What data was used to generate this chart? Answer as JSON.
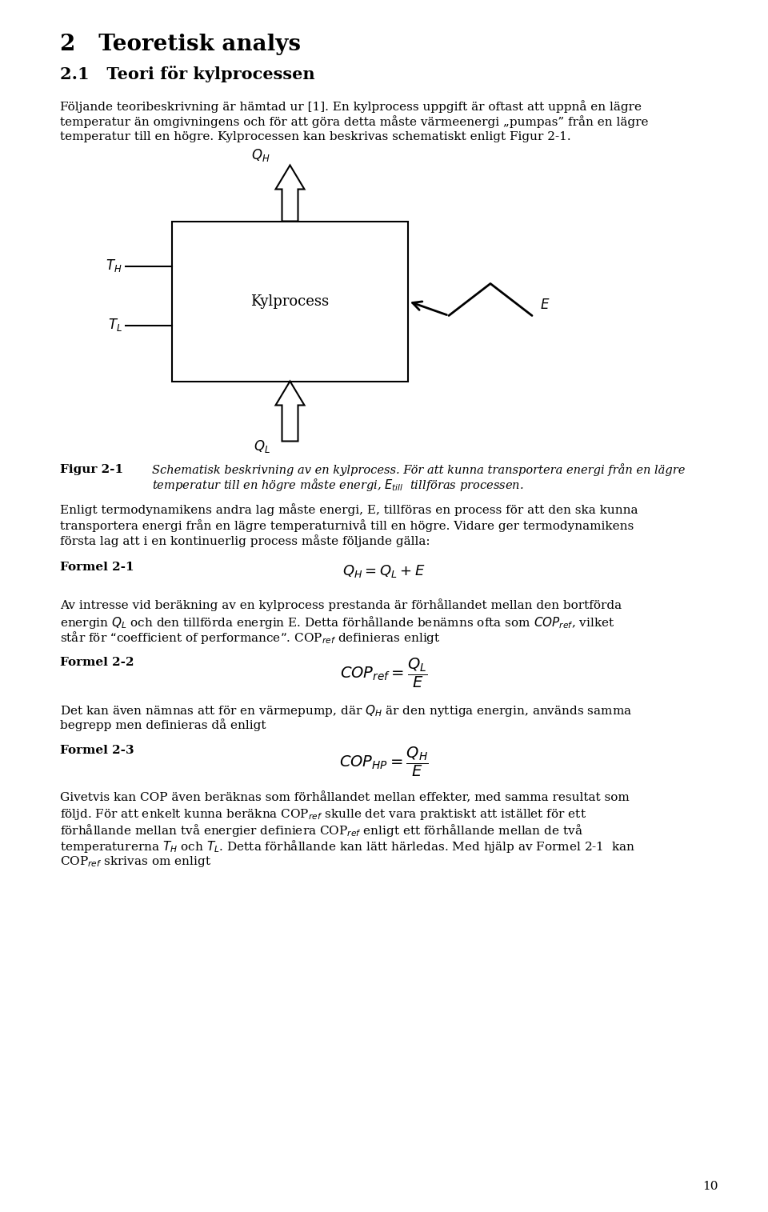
{
  "page_number": "10",
  "bg_color": "#ffffff",
  "text_color": "#000000",
  "heading1": "2   Teoretisk analys",
  "heading2": "2.1   Teori för kylprocessen",
  "para1_line1": "Följande teoribeskrivning är hämtad ur [1]. En kylprocess uppgift är oftast att uppnå en lägre",
  "para1_line2": "temperatur än omgivningens och för att göra detta måste värmeenergi „pumpas” från en lägre",
  "para1_line3": "temperatur till en högre. Kylprocessen kan beskrivas schematiskt enligt Figur 2-1.",
  "box_label": "Kylprocess",
  "th_label": "$T_H$",
  "tl_label": "$T_L$",
  "qh_label": "$Q_H$",
  "ql_label": "$Q_L$",
  "e_label": "$E$",
  "figur_bold": "Figur 2-1",
  "figur_caption_line1": "Schematisk beskrivning av en kylprocess. För att kunna transportera energi från en lägre",
  "figur_caption_line2": "temperatur till en högre måste energi, $E_{till}$  tillföras processen.",
  "para2_line1": "Enligt termodynamikens andra lag måste energi, E, tillföras en process för att den ska kunna",
  "para2_line2": "transportera energi från en lägre temperaturnivå till en högre. Vidare ger termodynamikens",
  "para2_line3": "första lag att i en kontinuerlig process måste följande gälla:",
  "formel1_label": "Formel 2-1",
  "formel1_eq": "$Q_H = Q_L + E$",
  "para3_line1": "Av intresse vid beräkning av en kylprocess prestanda är förhållandet mellan den bortförda",
  "para3_line2": "energin $Q_L$ och den tillförda energin E. Detta förhållande benämns ofta som $COP_{ref}$, vilket",
  "para3_line3": "står för “coefficient of performance”. COP$_{ref}$ definieras enligt",
  "formel2_label": "Formel 2-2",
  "formel2_eq": "$COP_{ref} = \\dfrac{Q_L}{E}$",
  "para4_line1": "Det kan även nämnas att för en värmepump, där $Q_H$ är den nyttiga energin, används samma",
  "para4_line2": "begrepp men definieras då enligt",
  "formel3_label": "Formel 2-3",
  "formel3_eq": "$COP_{HP} = \\dfrac{Q_H}{E}$",
  "para5_line1": "Givetvis kan COP även beräknas som förhållandet mellan effekter, med samma resultat som",
  "para5_line2": "följd. För att enkelt kunna beräkna COP$_{ref}$ skulle det vara praktiskt att istället för ett",
  "para5_line3": "förhållande mellan två energier definiera COP$_{ref}$ enligt ett förhållande mellan de två",
  "para5_line4": "temperaturerna $T_H$ och $T_L$. Detta förhållande kan lätt härledas. Med hjälp av Formel 2-1  kan",
  "para5_line5": "COP$_{ref}$ skrivas om enligt"
}
